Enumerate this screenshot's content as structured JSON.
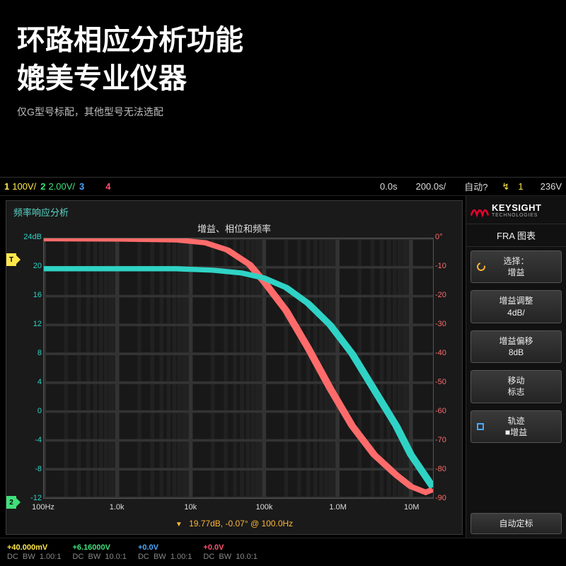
{
  "hero": {
    "line1": "环路相应分析功能",
    "line2": "媲美专业仪器",
    "sub": "仅G型号标配，其他型号无法选配"
  },
  "channel_bar": {
    "ch1": {
      "num": "1",
      "scale": "100V/",
      "color": "#ffe84a"
    },
    "ch2": {
      "num": "2",
      "scale": "2.00V/",
      "color": "#3fe07a"
    },
    "ch3": {
      "num": "3",
      "scale": "",
      "color": "#4aa8ff"
    },
    "ch4": {
      "num": "4",
      "scale": "",
      "color": "#ff4f6a"
    },
    "time_pos": "0.0s",
    "time_div": "200.0s/",
    "trig_mode": "自动?",
    "edge_icon": "↯",
    "trig_src": "1",
    "trig_level": "236V"
  },
  "panel": {
    "title": "频率响应分析",
    "chart_title": "增益、相位和频率",
    "cursor": "19.77dB, -0.07° @ 100.0Hz"
  },
  "chart": {
    "type": "bode",
    "background": "#181818",
    "grid_color": "#333333",
    "gain_color": "#2fd3c5",
    "phase_color": "#ff6b6b",
    "x_log_decades": [
      "100Hz",
      "1.0k",
      "10k",
      "100k",
      "1.0M",
      "10M"
    ],
    "x_range_decades": [
      2,
      7.3
    ],
    "gain_axis": {
      "min": -12,
      "max": 24,
      "step": 4,
      "top_label": "24dB"
    },
    "phase_axis": {
      "min": -90,
      "max": 0,
      "step": 10,
      "top_label": "0°"
    },
    "gain_points": [
      [
        2.0,
        19.8
      ],
      [
        3.0,
        19.8
      ],
      [
        3.8,
        19.8
      ],
      [
        4.3,
        19.6
      ],
      [
        4.7,
        19.2
      ],
      [
        5.0,
        18.5
      ],
      [
        5.3,
        17.2
      ],
      [
        5.6,
        15.0
      ],
      [
        5.9,
        12.0
      ],
      [
        6.2,
        8.0
      ],
      [
        6.5,
        3.0
      ],
      [
        6.8,
        -2.0
      ],
      [
        7.0,
        -6.0
      ],
      [
        7.2,
        -9.0
      ],
      [
        7.3,
        -10.5
      ]
    ],
    "phase_points": [
      [
        2.0,
        -0.1
      ],
      [
        3.0,
        -0.2
      ],
      [
        3.8,
        -0.5
      ],
      [
        4.2,
        -1.5
      ],
      [
        4.5,
        -4
      ],
      [
        4.8,
        -9
      ],
      [
        5.0,
        -15
      ],
      [
        5.3,
        -25
      ],
      [
        5.6,
        -38
      ],
      [
        5.9,
        -52
      ],
      [
        6.2,
        -65
      ],
      [
        6.5,
        -75
      ],
      [
        6.8,
        -82
      ],
      [
        7.0,
        -86
      ],
      [
        7.2,
        -88
      ],
      [
        7.3,
        -87
      ]
    ]
  },
  "brand": {
    "name": "KEYSIGHT",
    "tag": "TECHNOLOGIES",
    "logo_color": "#e9002d"
  },
  "side_menu": {
    "title": "FRA 图表",
    "items": [
      {
        "l1": "选择：",
        "l2": "增益",
        "icon": "circle"
      },
      {
        "l1": "增益调整",
        "l2": "4dB/"
      },
      {
        "l1": "增益偏移",
        "l2": "8dB"
      },
      {
        "l1": "移动",
        "l2": "标志"
      },
      {
        "l1": "轨迹",
        "l2": "■增益",
        "icon": "box"
      },
      {
        "l1": "自动定标",
        "l2": ""
      }
    ]
  },
  "status": {
    "ch1": {
      "v": "+40.000mV",
      "mode": "DC",
      "bw": "BW",
      "probe": "1.00:1"
    },
    "ch2": {
      "v": "+6.16000V",
      "mode": "DC",
      "bw": "BW",
      "probe": "10.0:1"
    },
    "ch3": {
      "v": "+0.0V",
      "mode": "DC",
      "bw": "BW",
      "probe": "1.00:1"
    },
    "ch4": {
      "v": "+0.0V",
      "mode": "DC",
      "bw": "BW",
      "probe": "10.0:1"
    }
  }
}
